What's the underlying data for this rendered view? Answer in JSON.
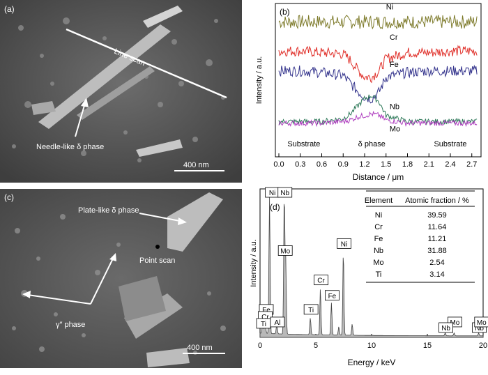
{
  "panels": {
    "a": {
      "label": "(a)",
      "line_scan_label": "Line scan",
      "phase_label": "Needle-like δ  phase",
      "scale_bar": "400 nm"
    },
    "c": {
      "label": "(c)",
      "plate_label": "Plate-like δ  phase",
      "point_scan_label": "Point scan",
      "gamma_label": "γ″ phase",
      "scale_bar": "400 nm"
    }
  },
  "chart_data": [
    {
      "panel_label": "(b)",
      "type": "line",
      "title": "",
      "xlabel": "Distance / μm",
      "ylabel": "Intensity / a.u.",
      "xlim": [
        0.0,
        2.8
      ],
      "xticks": [
        "0.0",
        "0.3",
        "0.6",
        "0.9",
        "1.2",
        "1.5",
        "1.8",
        "2.1",
        "2.4",
        "2.7"
      ],
      "region_labels": [
        "Substrate",
        "δ phase",
        "Substrate"
      ],
      "series": [
        {
          "name": "Ni",
          "color": "#7d7a2a",
          "level": 0.88,
          "x": [
            0.0,
            0.3,
            0.6,
            0.9,
            1.2,
            1.5,
            1.8,
            2.1,
            2.4,
            2.7
          ],
          "y": [
            0.88,
            0.88,
            0.88,
            0.88,
            0.88,
            0.88,
            0.88,
            0.88,
            0.88,
            0.88
          ]
        },
        {
          "name": "Cr",
          "color": "#e0302a",
          "x": [
            0.0,
            0.3,
            0.6,
            0.9,
            1.0,
            1.1,
            1.2,
            1.3,
            1.4,
            1.5,
            1.8,
            2.1,
            2.4,
            2.7
          ],
          "y": [
            0.69,
            0.69,
            0.68,
            0.67,
            0.63,
            0.57,
            0.52,
            0.52,
            0.56,
            0.64,
            0.68,
            0.68,
            0.69,
            0.69
          ]
        },
        {
          "name": "Fe",
          "color": "#33338c",
          "x": [
            0.0,
            0.3,
            0.6,
            0.9,
            1.0,
            1.1,
            1.2,
            1.3,
            1.4,
            1.5,
            1.8,
            2.1,
            2.4,
            2.7
          ],
          "y": [
            0.56,
            0.56,
            0.55,
            0.53,
            0.48,
            0.43,
            0.39,
            0.38,
            0.42,
            0.52,
            0.55,
            0.56,
            0.56,
            0.56
          ]
        },
        {
          "name": "Nb",
          "color": "#2f7a5a",
          "x": [
            0.0,
            0.3,
            0.6,
            0.9,
            1.0,
            1.1,
            1.2,
            1.3,
            1.4,
            1.5,
            1.8,
            2.1,
            2.4,
            2.7
          ],
          "y": [
            0.23,
            0.23,
            0.23,
            0.25,
            0.28,
            0.33,
            0.38,
            0.4,
            0.36,
            0.27,
            0.23,
            0.23,
            0.23,
            0.23
          ]
        },
        {
          "name": "Mo",
          "color": "#b040c0",
          "x": [
            0.0,
            0.3,
            0.6,
            0.9,
            1.0,
            1.1,
            1.2,
            1.3,
            1.4,
            1.5,
            1.8,
            2.1,
            2.4,
            2.7
          ],
          "y": [
            0.22,
            0.22,
            0.22,
            0.23,
            0.24,
            0.26,
            0.27,
            0.28,
            0.27,
            0.24,
            0.22,
            0.22,
            0.22,
            0.22
          ]
        }
      ]
    },
    {
      "panel_label": "(d)",
      "type": "area",
      "title": "",
      "xlabel": "Energy / keV",
      "ylabel": "Intensity / a.u.",
      "xlim": [
        0,
        20
      ],
      "xticks": [
        "0",
        "5",
        "10",
        "15",
        "20"
      ],
      "peaks": [
        {
          "x": 0.25,
          "h": 0.1
        },
        {
          "x": 0.45,
          "h": 0.15
        },
        {
          "x": 0.85,
          "h": 1.0
        },
        {
          "x": 1.5,
          "h": 0.07
        },
        {
          "x": 2.17,
          "h": 1.0
        },
        {
          "x": 2.3,
          "h": 0.55
        },
        {
          "x": 4.51,
          "h": 0.12
        },
        {
          "x": 5.41,
          "h": 0.33
        },
        {
          "x": 6.4,
          "h": 0.23
        },
        {
          "x": 7.06,
          "h": 0.06
        },
        {
          "x": 7.47,
          "h": 0.6
        },
        {
          "x": 8.26,
          "h": 0.08
        },
        {
          "x": 16.6,
          "h": 0.02
        },
        {
          "x": 17.4,
          "h": 0.02
        },
        {
          "x": 19.6,
          "h": 0.02
        }
      ],
      "peak_labels": [
        "Ni",
        "Nb",
        "Mo",
        "Ni",
        "Cr",
        "Fe",
        "Ti",
        "Fe",
        "Cr",
        "Ti",
        "Al",
        "Mo",
        "Nb",
        "Nb",
        "Mo"
      ],
      "table": {
        "headers": [
          "Element",
          "Atomic fraction / %"
        ],
        "rows": [
          [
            "Ni",
            "39.59"
          ],
          [
            "Cr",
            "11.64"
          ],
          [
            "Fe",
            "11.21"
          ],
          [
            "Nb",
            "31.88"
          ],
          [
            "Mo",
            "2.54"
          ],
          [
            "Ti",
            "3.14"
          ]
        ]
      }
    }
  ]
}
